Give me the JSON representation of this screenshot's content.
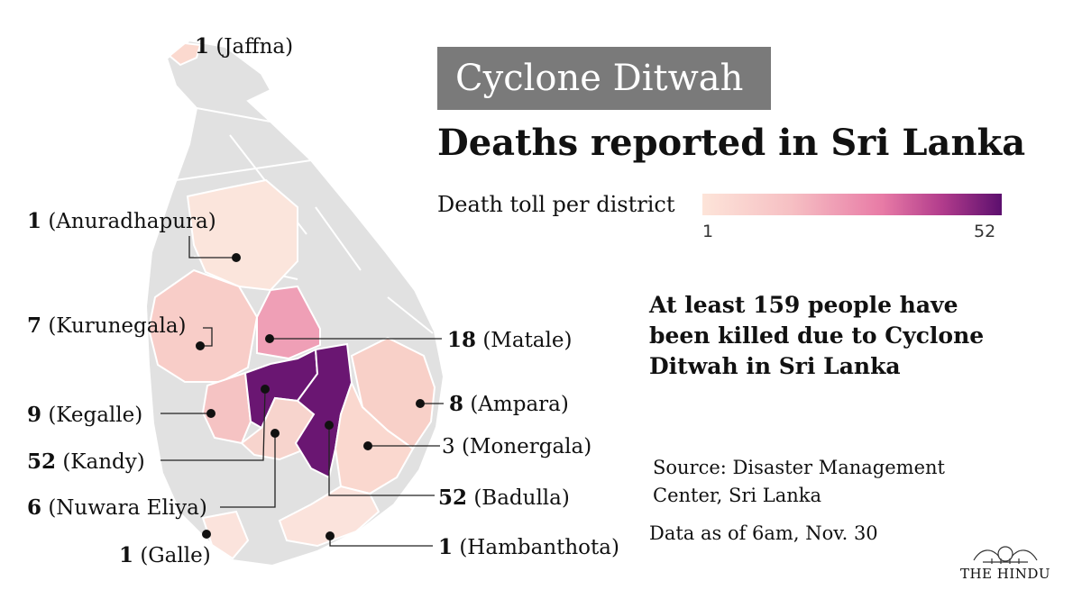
{
  "header": {
    "tag": "Cyclone Ditwah",
    "title": "Deaths reported in Sri Lanka"
  },
  "legend": {
    "title": "Death toll per district",
    "min": "1",
    "max": "52"
  },
  "districts": [
    {
      "num": "1",
      "name": "(Jaffna)",
      "value": 1
    },
    {
      "num": "1",
      "name": "(Anuradhapura)",
      "value": 1
    },
    {
      "num": "7",
      "name": "(Kurunegala)",
      "value": 7
    },
    {
      "num": "9",
      "name": "(Kegalle)",
      "value": 9
    },
    {
      "num": "52",
      "name": "(Kandy)",
      "value": 52
    },
    {
      "num": "6",
      "name": "(Nuwara Eliya)",
      "value": 6
    },
    {
      "num": "1",
      "name": "(Galle)",
      "value": 1
    },
    {
      "num": "18",
      "name": "(Matale)",
      "value": 18
    },
    {
      "num": "8",
      "name": "(Ampara)",
      "value": 8
    },
    {
      "num": "3",
      "name": "(Monergala)",
      "value": 3
    },
    {
      "num": "52",
      "name": "(Badulla)",
      "value": 52
    },
    {
      "num": "1",
      "name": "(Hambanthota)",
      "value": 1
    }
  ],
  "summary": "At least 159 people have been killed due to Cyclone Ditwah in Sri Lanka",
  "source": "Source: Disaster Management Center, Sri Lanka",
  "as_of": "Data as of 6am, Nov. 30",
  "brand": "THE HINDU",
  "colors": {
    "base_land": "#e1e1e1",
    "border": "#ffffff",
    "tag_bg": "#7a7a7a",
    "scale_low": "#fde4d9",
    "scale_high": "#5c0f6e"
  }
}
